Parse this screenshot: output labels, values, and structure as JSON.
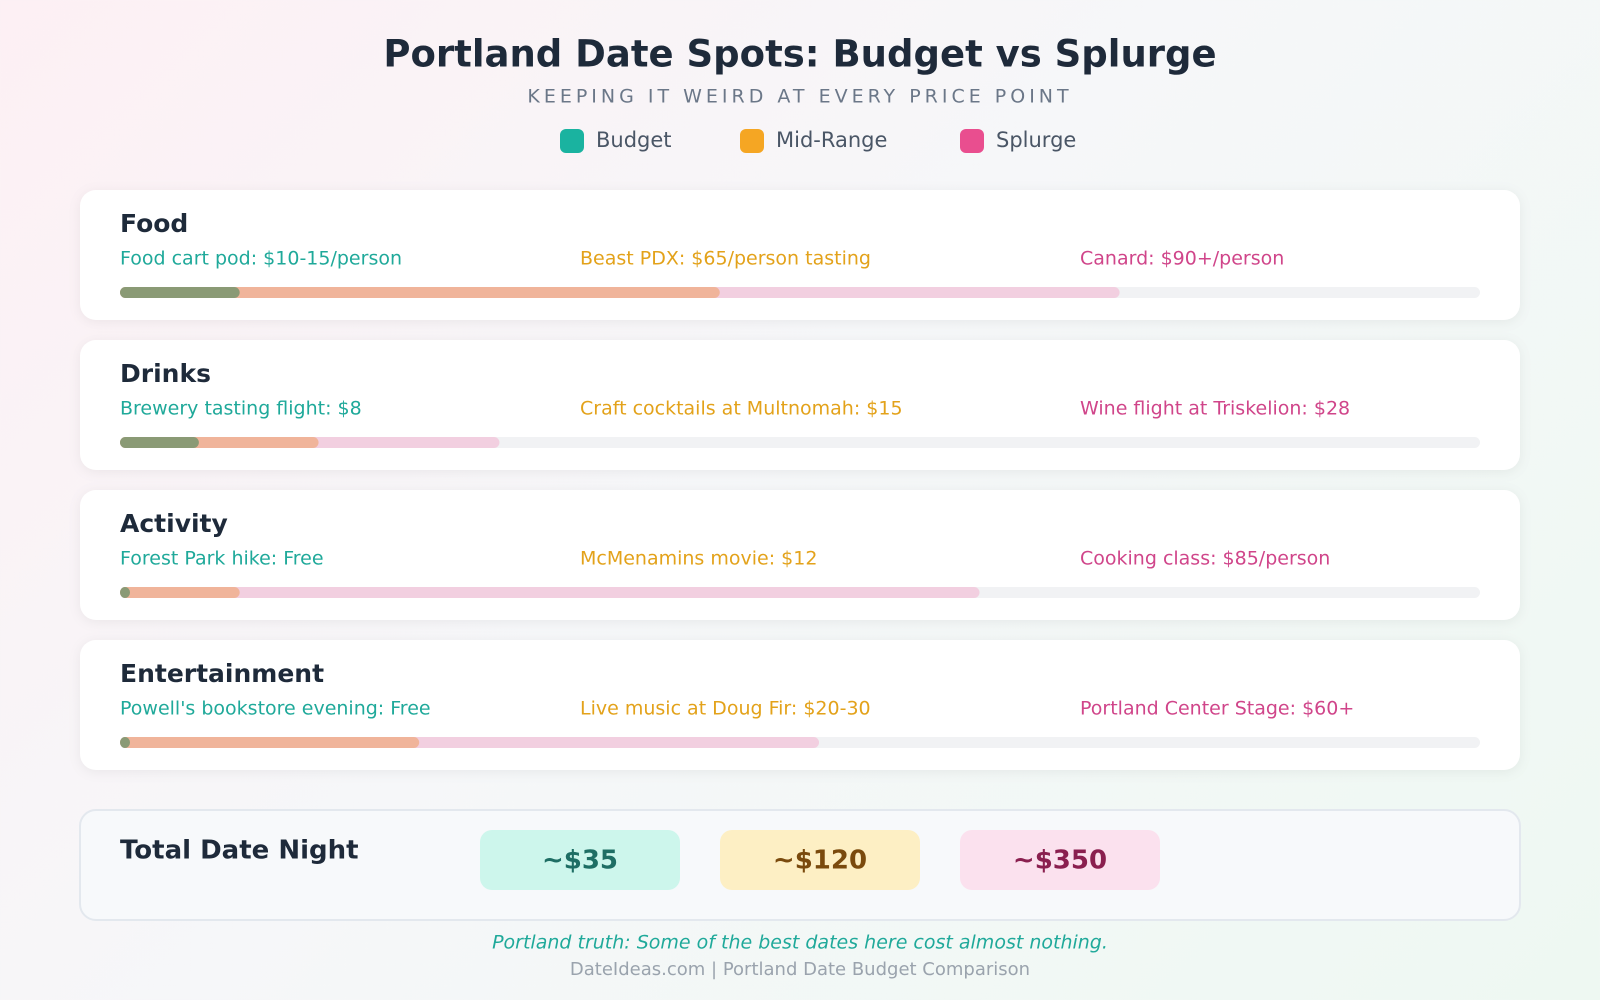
{
  "header": {
    "title": "Portland Date Spots: Budget vs Splurge",
    "subtitle": "KEEPING IT WEIRD AT EVERY PRICE POINT"
  },
  "legend": [
    {
      "label": "Budget",
      "color": "#1ab3a0",
      "text_color": "#1fa99a",
      "bar_color": "#8a9a75"
    },
    {
      "label": "Mid-Range",
      "color": "#f5a623",
      "text_color": "#e3a21a",
      "bar_color": "#f0b49a"
    },
    {
      "label": "Splurge",
      "color": "#e94e8f",
      "text_color": "#d0458a",
      "bar_color": "#f2cfe0"
    }
  ],
  "rows": [
    {
      "category": "Food",
      "items": [
        "Food cart pod: $10-15/person",
        "Beast PDX: $65/person tasting",
        "Canard: $90+/person"
      ],
      "bars": [
        8.8,
        44.1,
        73.5
      ]
    },
    {
      "category": "Drinks",
      "items": [
        "Brewery tasting flight: $8",
        "Craft cocktails at Multnomah: $15",
        "Wine flight at Triskelion: $28"
      ],
      "bars": [
        5.8,
        14.6,
        27.9
      ]
    },
    {
      "category": "Activity",
      "items": [
        "Forest Park hike: Free",
        "McMenamins movie: $12",
        "Cooking class: $85/person"
      ],
      "bars": [
        0.7,
        8.8,
        63.2
      ]
    },
    {
      "category": "Entertainment",
      "items": [
        "Powell's bookstore evening: Free",
        "Live music at Doug Fir: $20-30",
        "Portland Center Stage: $60+"
      ],
      "bars": [
        0.7,
        22,
        51.4
      ]
    }
  ],
  "bar_max": 100,
  "total": {
    "label": "Total Date Night",
    "values": [
      {
        "text": "~$35",
        "bg": "#cdf6ec",
        "fg": "#1e6e64"
      },
      {
        "text": "~$120",
        "bg": "#fdefc4",
        "fg": "#7a4a0d"
      },
      {
        "text": "~$350",
        "bg": "#fbe1ee",
        "fg": "#8a1f4f"
      }
    ]
  },
  "footer": {
    "note": "Portland truth: Some of the best dates here cost almost nothing.",
    "source": "DateIdeas.com | Portland Date Budget Comparison"
  }
}
